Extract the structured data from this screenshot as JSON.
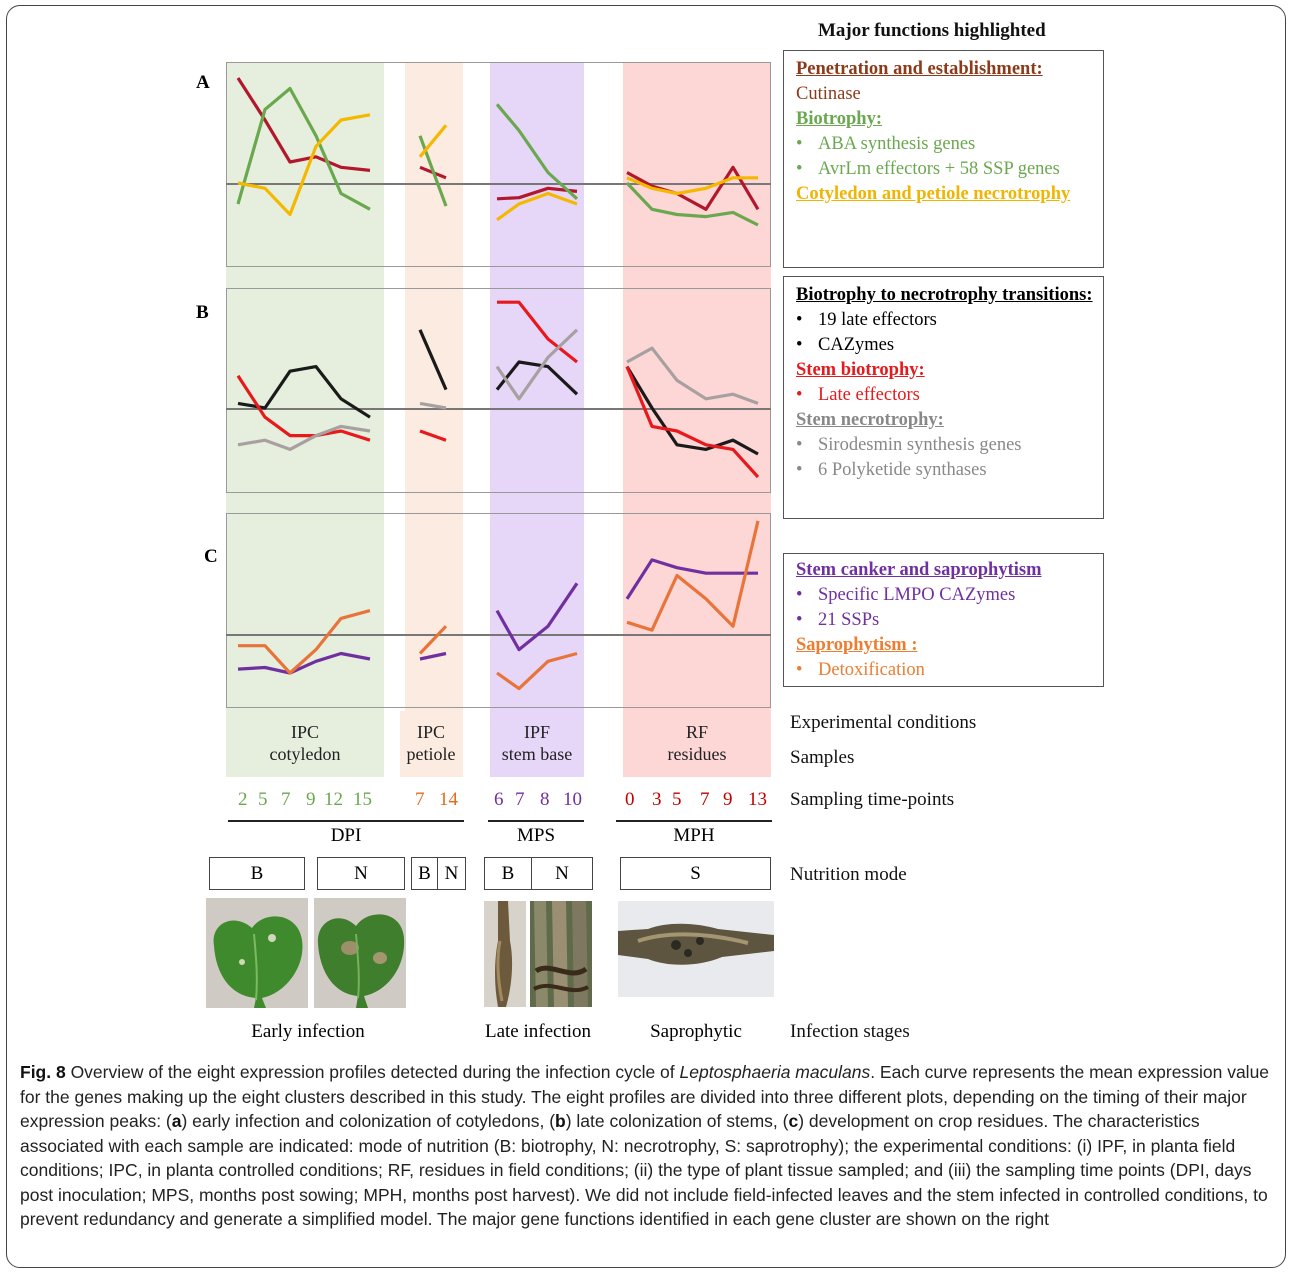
{
  "title": "Major functions highlighted",
  "panels": [
    "A",
    "B",
    "C"
  ],
  "function_boxes": {
    "A": [
      {
        "kind": "heading",
        "text": "Penetration and establishment:",
        "color": "#8b3a1a"
      },
      {
        "kind": "text",
        "text": "Cutinase",
        "color": "#8b3a1a"
      },
      {
        "kind": "heading",
        "text": "Biotrophy:",
        "color": "#6aa84f"
      },
      {
        "kind": "bullet",
        "text": "ABA synthesis genes",
        "color": "#6aa84f"
      },
      {
        "kind": "bullet",
        "text": "AvrLm effectors + 58 SSP genes",
        "color": "#6aa84f"
      },
      {
        "kind": "heading",
        "text": "Cotyledon and petiole necrotrophy",
        "color": "#f1b400"
      }
    ],
    "B": [
      {
        "kind": "heading",
        "text": "Biotrophy to necrotrophy transitions:",
        "color": "#000000"
      },
      {
        "kind": "bullet",
        "text": "19 late effectors",
        "color": "#000000"
      },
      {
        "kind": "bullet",
        "text": "CAZymes",
        "color": "#000000"
      },
      {
        "kind": "heading",
        "text": "Stem biotrophy:",
        "color": "#e41a1c"
      },
      {
        "kind": "bullet",
        "text": "Late effectors",
        "color": "#e41a1c"
      },
      {
        "kind": "heading",
        "text": "Stem necrotrophy:",
        "color": "#888888"
      },
      {
        "kind": "bullet",
        "text": "Sirodesmin synthesis genes",
        "color": "#888888"
      },
      {
        "kind": "bullet",
        "text": "6 Polyketide synthases",
        "color": "#888888"
      }
    ],
    "C": [
      {
        "kind": "heading",
        "text": "Stem canker and saprophytism",
        "color": "#7030a0"
      },
      {
        "kind": "bullet",
        "text": "Specific LMPO CAZymes",
        "color": "#7030a0"
      },
      {
        "kind": "bullet",
        "text": "21 SSPs",
        "color": "#7030a0"
      },
      {
        "kind": "heading",
        "text": "Saprophytism :",
        "color": "#ed7d31"
      },
      {
        "kind": "bullet",
        "text": "Detoxification",
        "color": "#ed7d31"
      }
    ]
  },
  "samples": {
    "cotyledon": {
      "condition": "IPC",
      "tissue": "cotyledon"
    },
    "petiole": {
      "condition": "IPC",
      "tissue": "petiole"
    },
    "stem": {
      "condition": "IPF",
      "tissue": "stem base"
    },
    "residues": {
      "condition": "RF",
      "tissue": "residues"
    }
  },
  "row_labels": {
    "conditions": "Experimental conditions",
    "samples": "Samples",
    "timepoints": "Sampling time-points",
    "nutrition": "Nutrition mode",
    "stages": "Infection stages"
  },
  "timepoints": {
    "cotyledon": {
      "values": [
        "2",
        "5",
        "7",
        "9",
        "12",
        "15"
      ],
      "color": "#6aa84f"
    },
    "petiole": {
      "values": [
        "7",
        "14"
      ],
      "color": "#e06c1a"
    },
    "stem": {
      "values": [
        "6",
        "7",
        "8",
        "10"
      ],
      "color": "#7030a0"
    },
    "residues": {
      "values": [
        "0",
        "3",
        "5",
        "7",
        "9",
        "13"
      ],
      "color": "#c00000"
    }
  },
  "units": {
    "dpi": "DPI",
    "mps": "MPS",
    "mph": "MPH"
  },
  "nutrition": {
    "cot_b": "B",
    "cot_n": "N",
    "pet_b": "B",
    "pet_n": "N",
    "stem_b": "B",
    "stem_n": "N",
    "res_s": "S"
  },
  "stages": {
    "early": "Early infection",
    "late": "Late infection",
    "sapro": "Saprophytic"
  },
  "colors": {
    "darkred": "#b2182b",
    "green": "#6aa84f",
    "yellow": "#f5b800",
    "black": "#1a1a1a",
    "red": "#e8191c",
    "grey": "#a8a0a0",
    "purple": "#7030a0",
    "orange": "#e8743a"
  },
  "chart_data": {
    "type": "line",
    "note_units": "relative expression (no axis values printed)",
    "segments_x": {
      "cotyledon": [
        2,
        5,
        7,
        9,
        12,
        15
      ],
      "petiole": [
        7,
        14
      ],
      "stem": [
        6,
        7,
        8,
        10
      ],
      "residues": [
        0,
        3,
        5,
        7,
        9,
        13
      ]
    },
    "panels": [
      {
        "panel": "A",
        "series": [
          {
            "color": "darkred",
            "cotyledon": [
              1.0,
              0.6,
              0.2,
              0.25,
              0.15,
              0.12
            ],
            "petiole": [
              0.15,
              0.05
            ],
            "stem": [
              -0.15,
              -0.14,
              -0.05,
              -0.08
            ],
            "residues": [
              0.1,
              -0.03,
              -0.1,
              -0.25,
              0.15,
              -0.25
            ]
          },
          {
            "color": "green",
            "cotyledon": [
              -0.2,
              0.7,
              0.9,
              0.45,
              -0.1,
              -0.25
            ],
            "petiole": [
              0.45,
              -0.22
            ],
            "stem": [
              0.75,
              0.5,
              0.1,
              -0.15
            ],
            "residues": [
              0.0,
              -0.25,
              -0.3,
              -0.32,
              -0.28,
              -0.4
            ]
          },
          {
            "color": "yellow",
            "cotyledon": [
              0.0,
              -0.05,
              -0.3,
              0.35,
              0.6,
              0.65
            ],
            "petiole": [
              0.25,
              0.55
            ],
            "stem": [
              -0.35,
              -0.2,
              -0.1,
              -0.2
            ],
            "residues": [
              0.05,
              -0.05,
              -0.1,
              -0.05,
              0.05,
              0.05
            ]
          }
        ]
      },
      {
        "panel": "B",
        "series": [
          {
            "color": "black",
            "cotyledon": [
              0.05,
              0.0,
              0.4,
              0.45,
              0.1,
              -0.1
            ],
            "petiole": [
              0.85,
              0.2
            ],
            "stem": [
              0.2,
              0.5,
              0.45,
              0.15
            ],
            "residues": [
              0.45,
              0.0,
              -0.4,
              -0.45,
              -0.35,
              -0.5
            ]
          },
          {
            "color": "red",
            "cotyledon": [
              0.35,
              -0.1,
              -0.3,
              -0.3,
              -0.25,
              -0.35
            ],
            "petiole": [
              -0.25,
              -0.35
            ],
            "stem": [
              1.15,
              1.15,
              0.75,
              0.5
            ],
            "residues": [
              0.45,
              -0.2,
              -0.25,
              -0.4,
              -0.45,
              -0.75
            ]
          },
          {
            "color": "grey",
            "cotyledon": [
              -0.4,
              -0.35,
              -0.45,
              -0.3,
              -0.2,
              -0.25
            ],
            "petiole": [
              0.05,
              0.0
            ],
            "stem": [
              0.45,
              0.1,
              0.55,
              0.85
            ],
            "residues": [
              0.5,
              0.65,
              0.3,
              0.1,
              0.15,
              0.05
            ]
          }
        ]
      },
      {
        "panel": "C",
        "series": [
          {
            "color": "purple",
            "cotyledon": [
              -0.45,
              -0.43,
              -0.5,
              -0.35,
              -0.25,
              -0.32
            ],
            "petiole": [
              -0.32,
              -0.25
            ],
            "stem": [
              0.3,
              -0.2,
              0.1,
              0.65
            ],
            "residues": [
              0.45,
              0.95,
              0.85,
              0.78,
              0.78,
              0.78
            ]
          },
          {
            "color": "orange",
            "cotyledon": [
              -0.15,
              -0.15,
              -0.5,
              -0.2,
              0.2,
              0.3
            ],
            "petiole": [
              -0.25,
              0.1
            ],
            "stem": [
              -0.5,
              -0.7,
              -0.35,
              -0.25
            ],
            "residues": [
              0.15,
              0.05,
              0.75,
              0.45,
              0.1,
              1.45
            ]
          }
        ]
      }
    ]
  },
  "caption": {
    "fig": "Fig. 8",
    "t1": " Overview of the eight expression profiles detected during the infection cycle of ",
    "species": "Leptosphaeria maculans",
    "t2": ". Each curve represents the mean expression value for the genes making up the eight clusters described in this study. The eight profiles are divided into three different plots, depending on the timing of their major expression peaks: (",
    "a": "a",
    "t3": ") early infection and colonization of cotyledons, (",
    "b": "b",
    "t4": ") late colonization of stems, (",
    "c": "c",
    "t5": ") development on crop residues. The characteristics associated with each sample are indicated: mode of nutrition (B: biotrophy, N: necrotrophy, S: saprotrophy); the experimental conditions: (i) IPF, in planta field conditions; IPC, in planta controlled conditions; RF, residues in field conditions; (ii) the type of plant tissue sampled; and (iii) the sampling time points (DPI, days post inoculation; MPS, months post sowing; MPH, months post harvest). We did not include field-infected leaves and the stem infected in controlled conditions, to prevent redundancy and generate a simplified model. The major gene functions identified in each gene cluster are shown on the right"
  }
}
